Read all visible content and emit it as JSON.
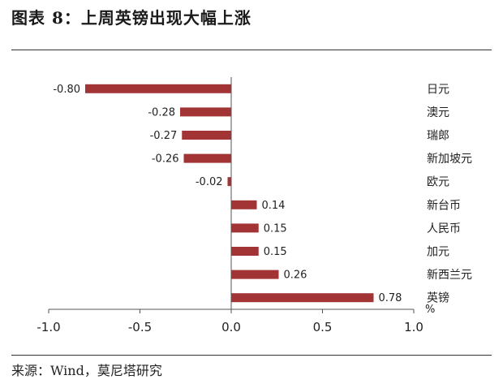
{
  "title": "图表 8：上周英镑出现大幅上涨",
  "source": "来源：Wind，莫尼塔研究",
  "chart_data": {
    "type": "bar",
    "orientation": "horizontal",
    "categories": [
      "日元",
      "澳元",
      "瑞郎",
      "新加坡元",
      "欧元",
      "新台币",
      "人民币",
      "加元",
      "新西兰元",
      "英镑"
    ],
    "values": [
      -0.8,
      -0.28,
      -0.27,
      -0.26,
      -0.02,
      0.14,
      0.15,
      0.15,
      0.26,
      0.78
    ],
    "value_labels": [
      "-0.80",
      "-0.28",
      "-0.27",
      "-0.26",
      "-0.02",
      "0.14",
      "0.15",
      "0.15",
      "0.26",
      "0.78"
    ],
    "unit": "%",
    "xlim": [
      -1.0,
      1.0
    ],
    "xticks": [
      -1.0,
      -0.5,
      0.0,
      0.5,
      1.0
    ],
    "xtick_labels": [
      "-1.0",
      "-0.5",
      "0.0",
      "0.5",
      "1.0"
    ],
    "bar_color": "#a33436",
    "grid": false,
    "legend": "none"
  }
}
